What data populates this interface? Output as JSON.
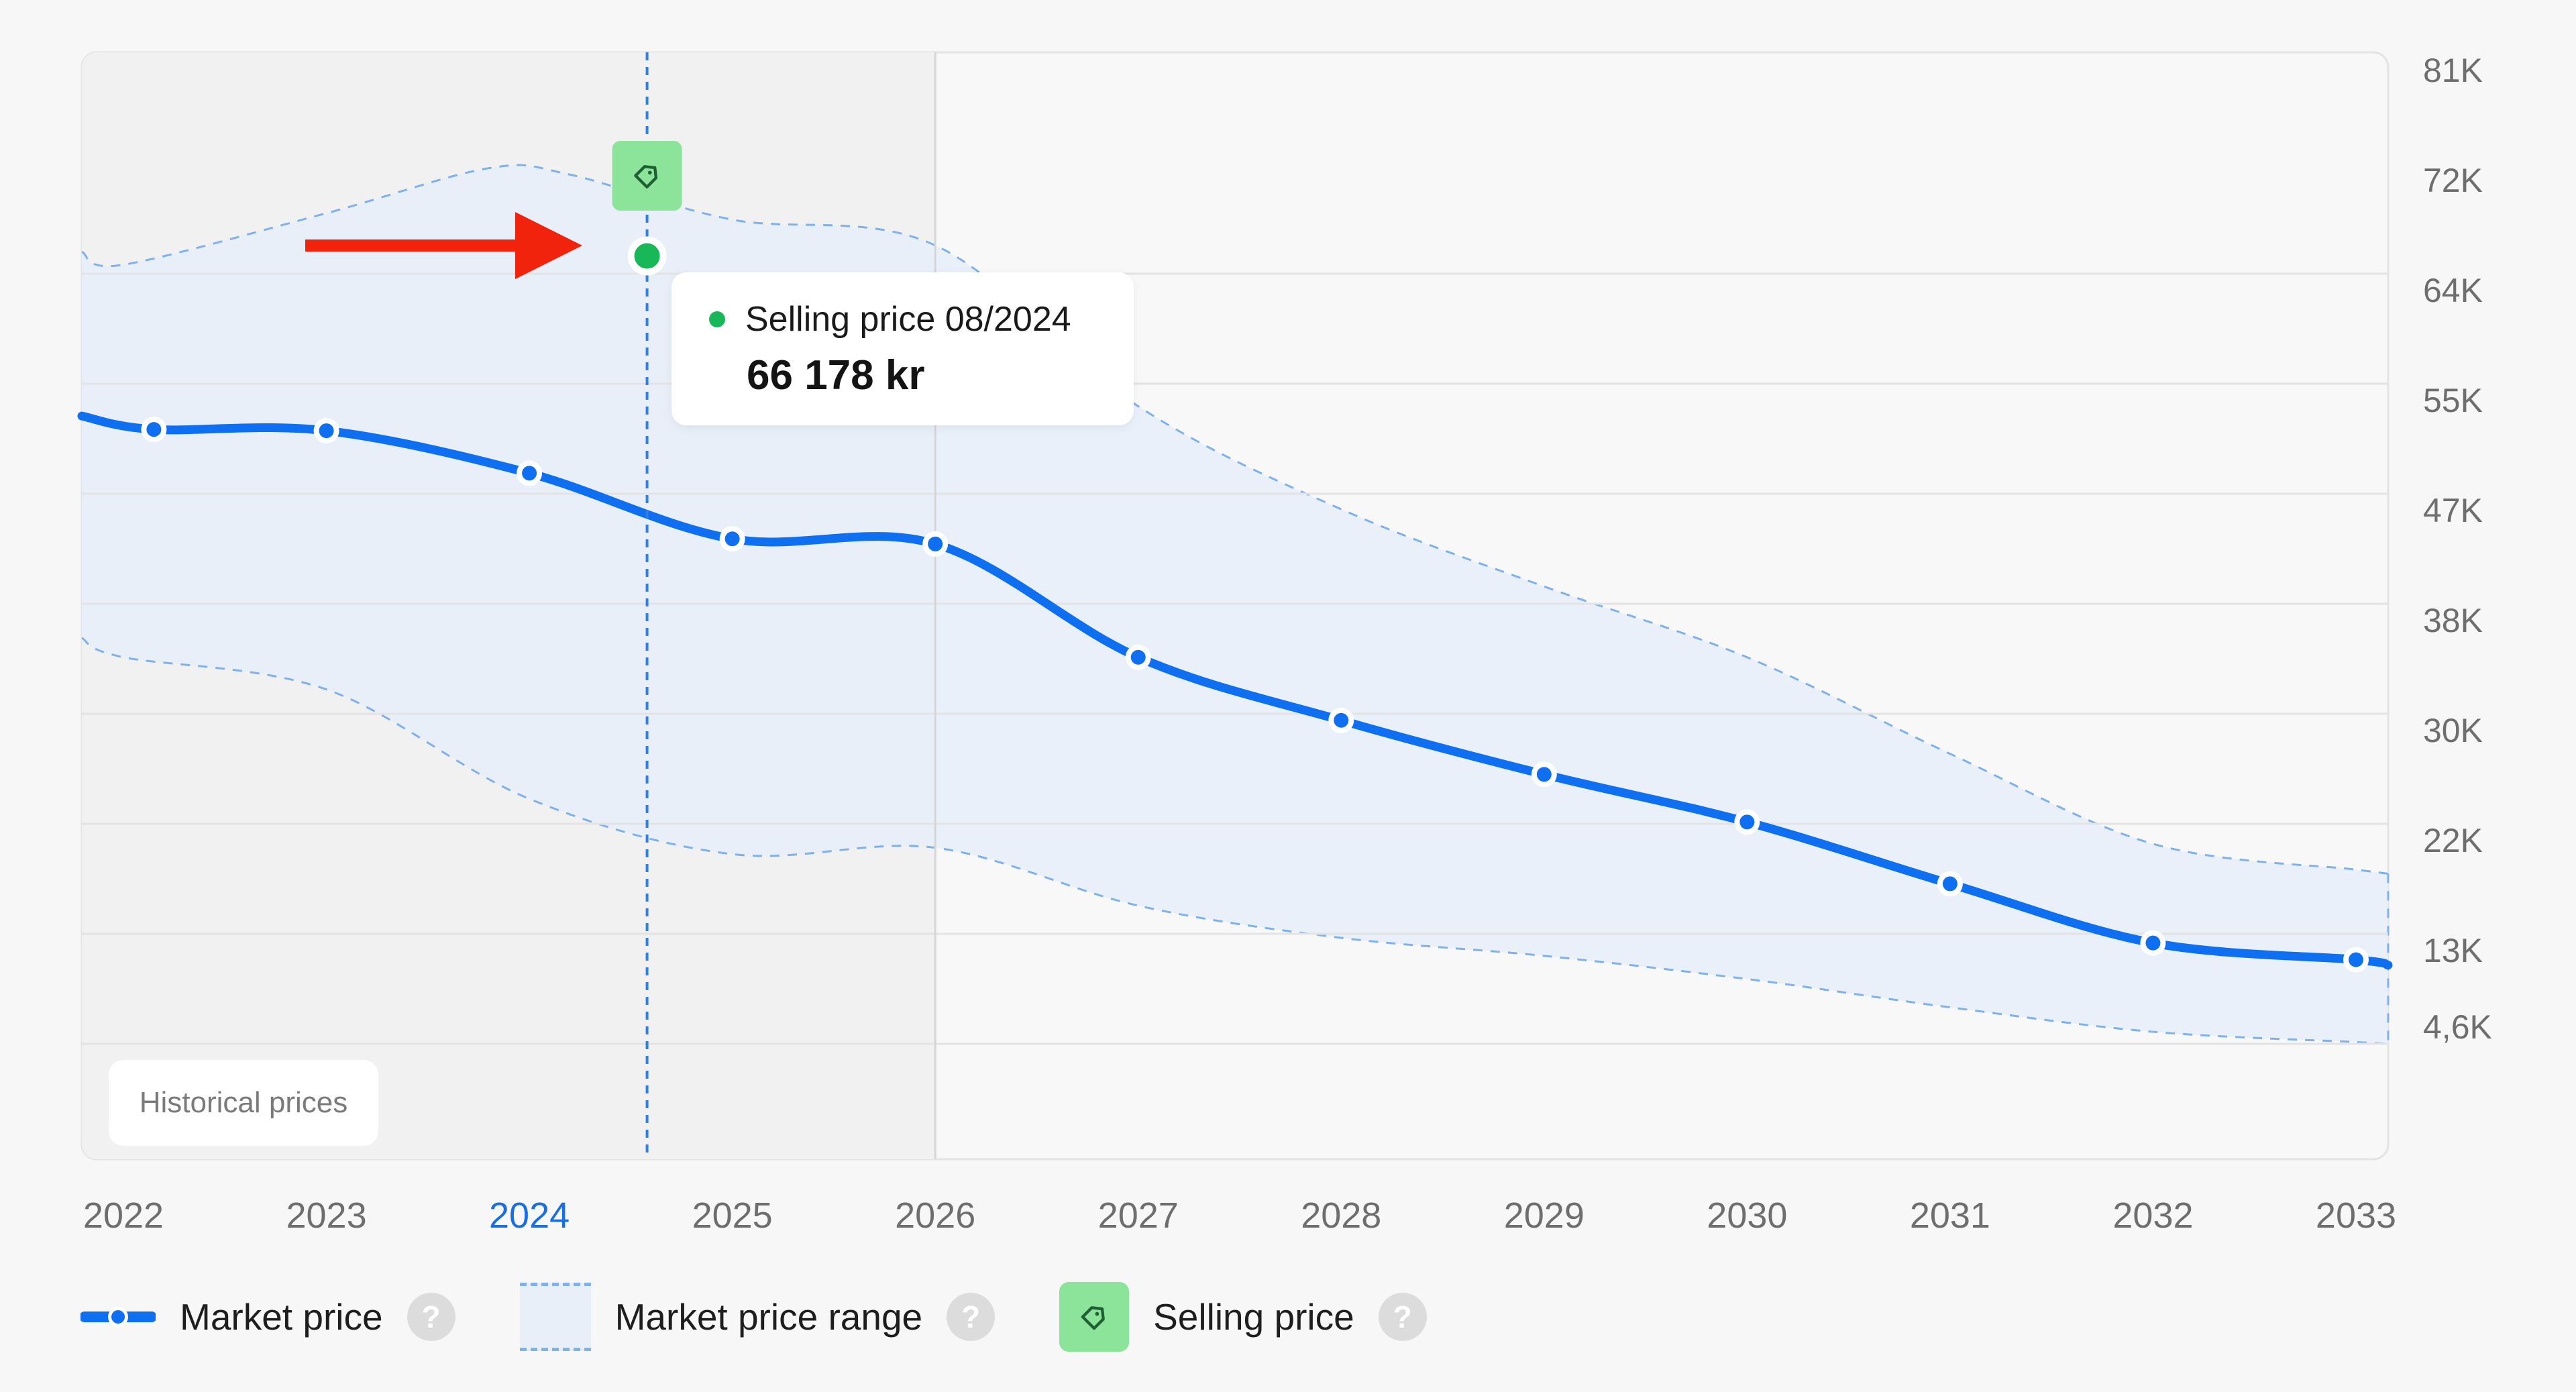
{
  "chart_data": {
    "type": "line",
    "x": [
      "2022",
      "2023",
      "2024",
      "2025",
      "2026",
      "2027",
      "2028",
      "2029",
      "2030",
      "2031",
      "2032",
      "2033"
    ],
    "highlight_x": "2024",
    "y_ticks": [
      "81K",
      "72K",
      "64K",
      "55K",
      "47K",
      "38K",
      "30K",
      "22K",
      "13K",
      "4,6K"
    ],
    "ylim": [
      -4000,
      82000
    ],
    "series": [
      {
        "name": "Market price",
        "color": "#0e6ff0",
        "x": [
          2022.15,
          2023.0,
          2024.0,
          2025.0,
          2026.0,
          2027.0,
          2028.0,
          2029.0,
          2030.0,
          2031.0,
          2032.0,
          2033.0
        ],
        "values": [
          52700,
          52600,
          49300,
          44200,
          43800,
          35000,
          30100,
          25900,
          22200,
          17400,
          12800,
          11500
        ]
      }
    ],
    "range_band": {
      "name": "Market price range",
      "upper": [
        [
          2021.6,
          66500
        ],
        [
          2022.0,
          65500
        ],
        [
          2023.0,
          69500
        ],
        [
          2023.8,
          73000
        ],
        [
          2024.2,
          72500
        ],
        [
          2025.0,
          69000
        ],
        [
          2026.0,
          67000
        ],
        [
          2027.0,
          54500
        ],
        [
          2028.0,
          46500
        ],
        [
          2029.0,
          40500
        ],
        [
          2030.0,
          35000
        ],
        [
          2031.0,
          27500
        ],
        [
          2032.0,
          20500
        ],
        [
          2033.0,
          18500
        ]
      ],
      "lower": [
        [
          2021.6,
          36500
        ],
        [
          2022.0,
          35000
        ],
        [
          2023.0,
          32500
        ],
        [
          2024.0,
          24000
        ],
        [
          2025.0,
          19700
        ],
        [
          2026.0,
          20200
        ],
        [
          2027.0,
          15700
        ],
        [
          2028.0,
          13200
        ],
        [
          2029.0,
          11800
        ],
        [
          2030.0,
          10000
        ],
        [
          2031.0,
          7800
        ],
        [
          2032.0,
          5900
        ],
        [
          2033.0,
          5100
        ]
      ]
    },
    "selling_point": {
      "x": 2024.58,
      "value": 66178
    },
    "historical_until_x": 2026.0,
    "colors": {
      "market": "#0e6ff0",
      "band_fill": "#e8eff9",
      "band_line": "#7fb1ec",
      "selling": "#18b859",
      "tag_bg": "#8ce49a",
      "arrow": "#f1230c",
      "highlight_tick": "#1a6fe0"
    }
  },
  "tooltip": {
    "title": "Selling price 08/2024",
    "value": "66 178 kr",
    "dot_color": "#18b859"
  },
  "historical_label": "Historical prices",
  "legend": [
    {
      "label": "Market price",
      "icon": "market-price-line-icon"
    },
    {
      "label": "Market price range",
      "icon": "range-band-icon"
    },
    {
      "label": "Selling price",
      "icon": "price-tag-icon"
    }
  ],
  "help_glyph": "?"
}
